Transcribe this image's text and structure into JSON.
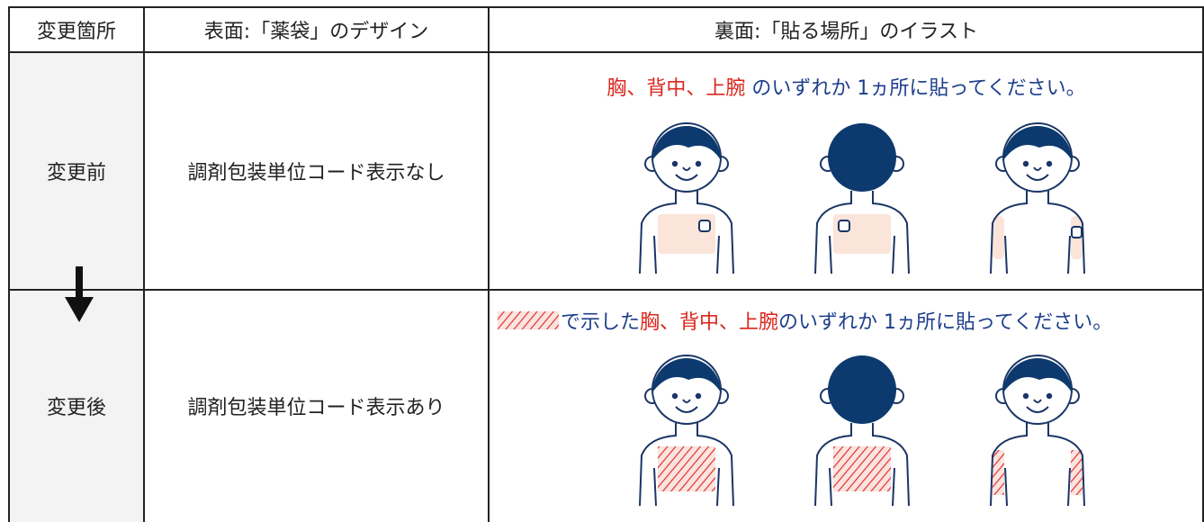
{
  "header": {
    "columns": [
      "変更箇所",
      "表面:「薬袋」のデザイン",
      "裏面:「貼る場所」のイラスト"
    ]
  },
  "rows": [
    {
      "label": "変更前",
      "design": "調剤包装単位コード表示なし",
      "instruction": {
        "parts": [
          "胸、背中、上腕",
          " のいずれか 1ヵ所に貼ってください。"
        ]
      }
    },
    {
      "label": "変更後",
      "design": "調剤包装単位コード表示あり",
      "instruction": {
        "parts": [
          "で示した",
          "胸、背中、上腕",
          " のいずれか 1ヵ所に貼ってください。"
        ]
      }
    }
  ]
}
